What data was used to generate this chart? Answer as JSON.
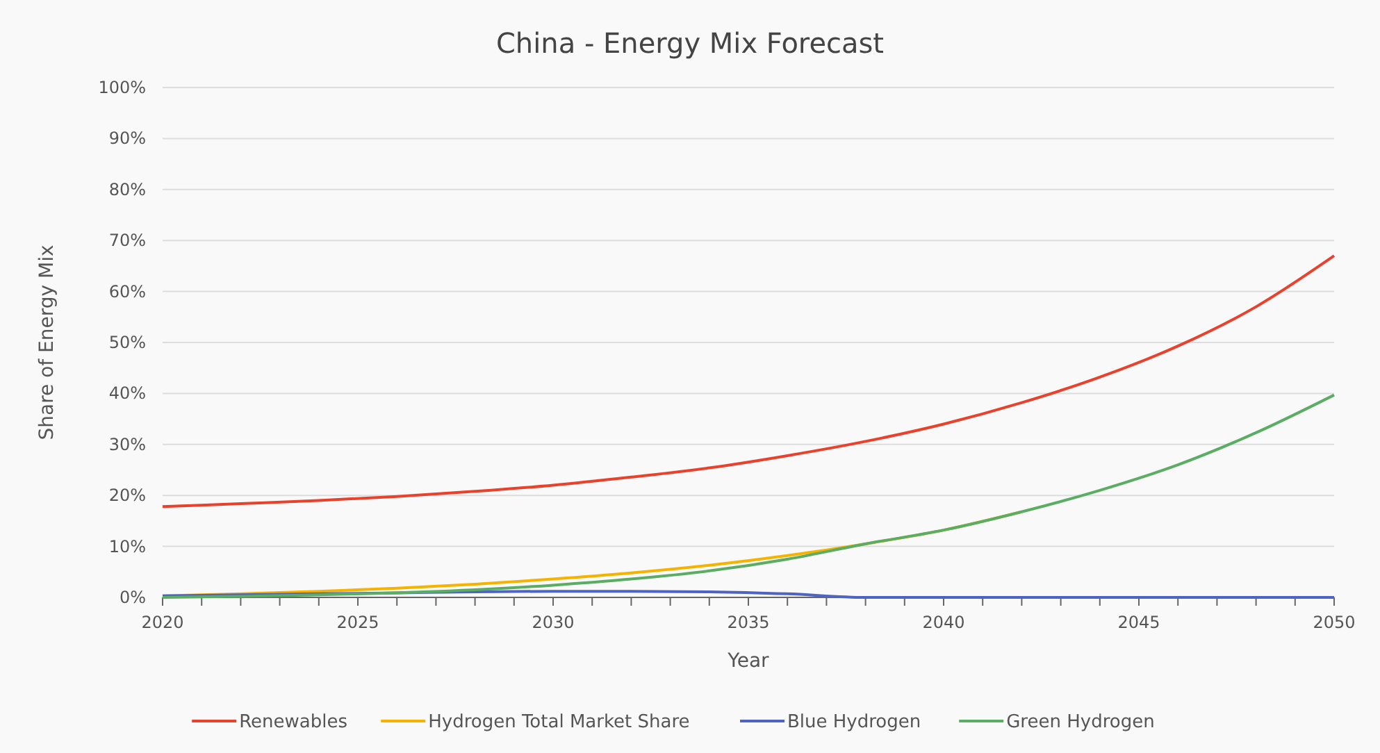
{
  "chart_data": {
    "type": "line",
    "title": "China - Energy Mix Forecast",
    "xlabel": "Year",
    "ylabel": "Share of Energy Mix",
    "x": [
      2020,
      2022,
      2024,
      2026,
      2028,
      2030,
      2032,
      2034,
      2036,
      2038,
      2040,
      2042,
      2044,
      2046,
      2048,
      2050
    ],
    "series": [
      {
        "name": "Renewables",
        "color": "#e8412c",
        "values": [
          17.8,
          18.4,
          19.0,
          19.8,
          20.8,
          22.0,
          23.6,
          25.4,
          27.8,
          30.6,
          34.0,
          38.2,
          43.2,
          49.3,
          57.0,
          67.0
        ]
      },
      {
        "name": "Hydrogen Total Market Share",
        "color": "#f5b300",
        "values": [
          0.3,
          0.7,
          1.2,
          1.8,
          2.6,
          3.6,
          4.8,
          6.3,
          8.2,
          10.5,
          13.2,
          16.8,
          null,
          null,
          null,
          null
        ]
      },
      {
        "name": "Blue Hydrogen",
        "color": "#4f63c2",
        "values": [
          0.3,
          0.5,
          0.7,
          0.9,
          1.1,
          1.2,
          1.2,
          1.1,
          0.7,
          0,
          0,
          0,
          0,
          0,
          0,
          0
        ]
      },
      {
        "name": "Green Hydrogen",
        "color": "#5aad62",
        "values": [
          0,
          0.2,
          0.5,
          0.9,
          1.5,
          2.4,
          3.6,
          5.2,
          7.5,
          10.5,
          13.2,
          16.8,
          21.0,
          26.0,
          32.3,
          39.7
        ]
      }
    ],
    "xlim": [
      2020,
      2050
    ],
    "xticks": [
      2020,
      {
        "value": 2021,
        "label": null
      },
      {
        "value": 2022,
        "label": null
      },
      {
        "value": 2023,
        "label": null
      },
      {
        "value": 2024,
        "label": null
      },
      2025,
      {
        "value": 2026,
        "label": null
      },
      {
        "value": 2027,
        "label": null
      },
      {
        "value": 2028,
        "label": null
      },
      {
        "value": 2029,
        "label": null
      },
      2030,
      {
        "value": 2031,
        "label": null
      },
      {
        "value": 2032,
        "label": null
      },
      {
        "value": 2033,
        "label": null
      },
      {
        "value": 2034,
        "label": null
      },
      2035,
      {
        "value": 2036,
        "label": null
      },
      {
        "value": 2037,
        "label": null
      },
      {
        "value": 2038,
        "label": null
      },
      {
        "value": 2039,
        "label": null
      },
      2040,
      {
        "value": 2041,
        "label": null
      },
      {
        "value": 2042,
        "label": null
      },
      {
        "value": 2043,
        "label": null
      },
      {
        "value": 2044,
        "label": null
      },
      2045,
      {
        "value": 2046,
        "label": null
      },
      {
        "value": 2047,
        "label": null
      },
      {
        "value": 2048,
        "label": null
      },
      {
        "value": 2049,
        "label": null
      },
      2050
    ],
    "ylim": [
      0,
      100
    ],
    "yticks": [
      {
        "value": 0,
        "label": "0%"
      },
      {
        "value": 10,
        "label": "10%"
      },
      {
        "value": 20,
        "label": "20%"
      },
      {
        "value": 30,
        "label": "30%"
      },
      {
        "value": 40,
        "label": "40%"
      },
      {
        "value": 50,
        "label": "50%"
      },
      {
        "value": 60,
        "label": "60%"
      },
      {
        "value": 70,
        "label": "70%"
      },
      {
        "value": 80,
        "label": "80%"
      },
      {
        "value": 90,
        "label": "90%"
      },
      {
        "value": 100,
        "label": "100%"
      }
    ],
    "grid": "y",
    "legend": "bottom",
    "marker": "none",
    "line_style": "solid"
  }
}
